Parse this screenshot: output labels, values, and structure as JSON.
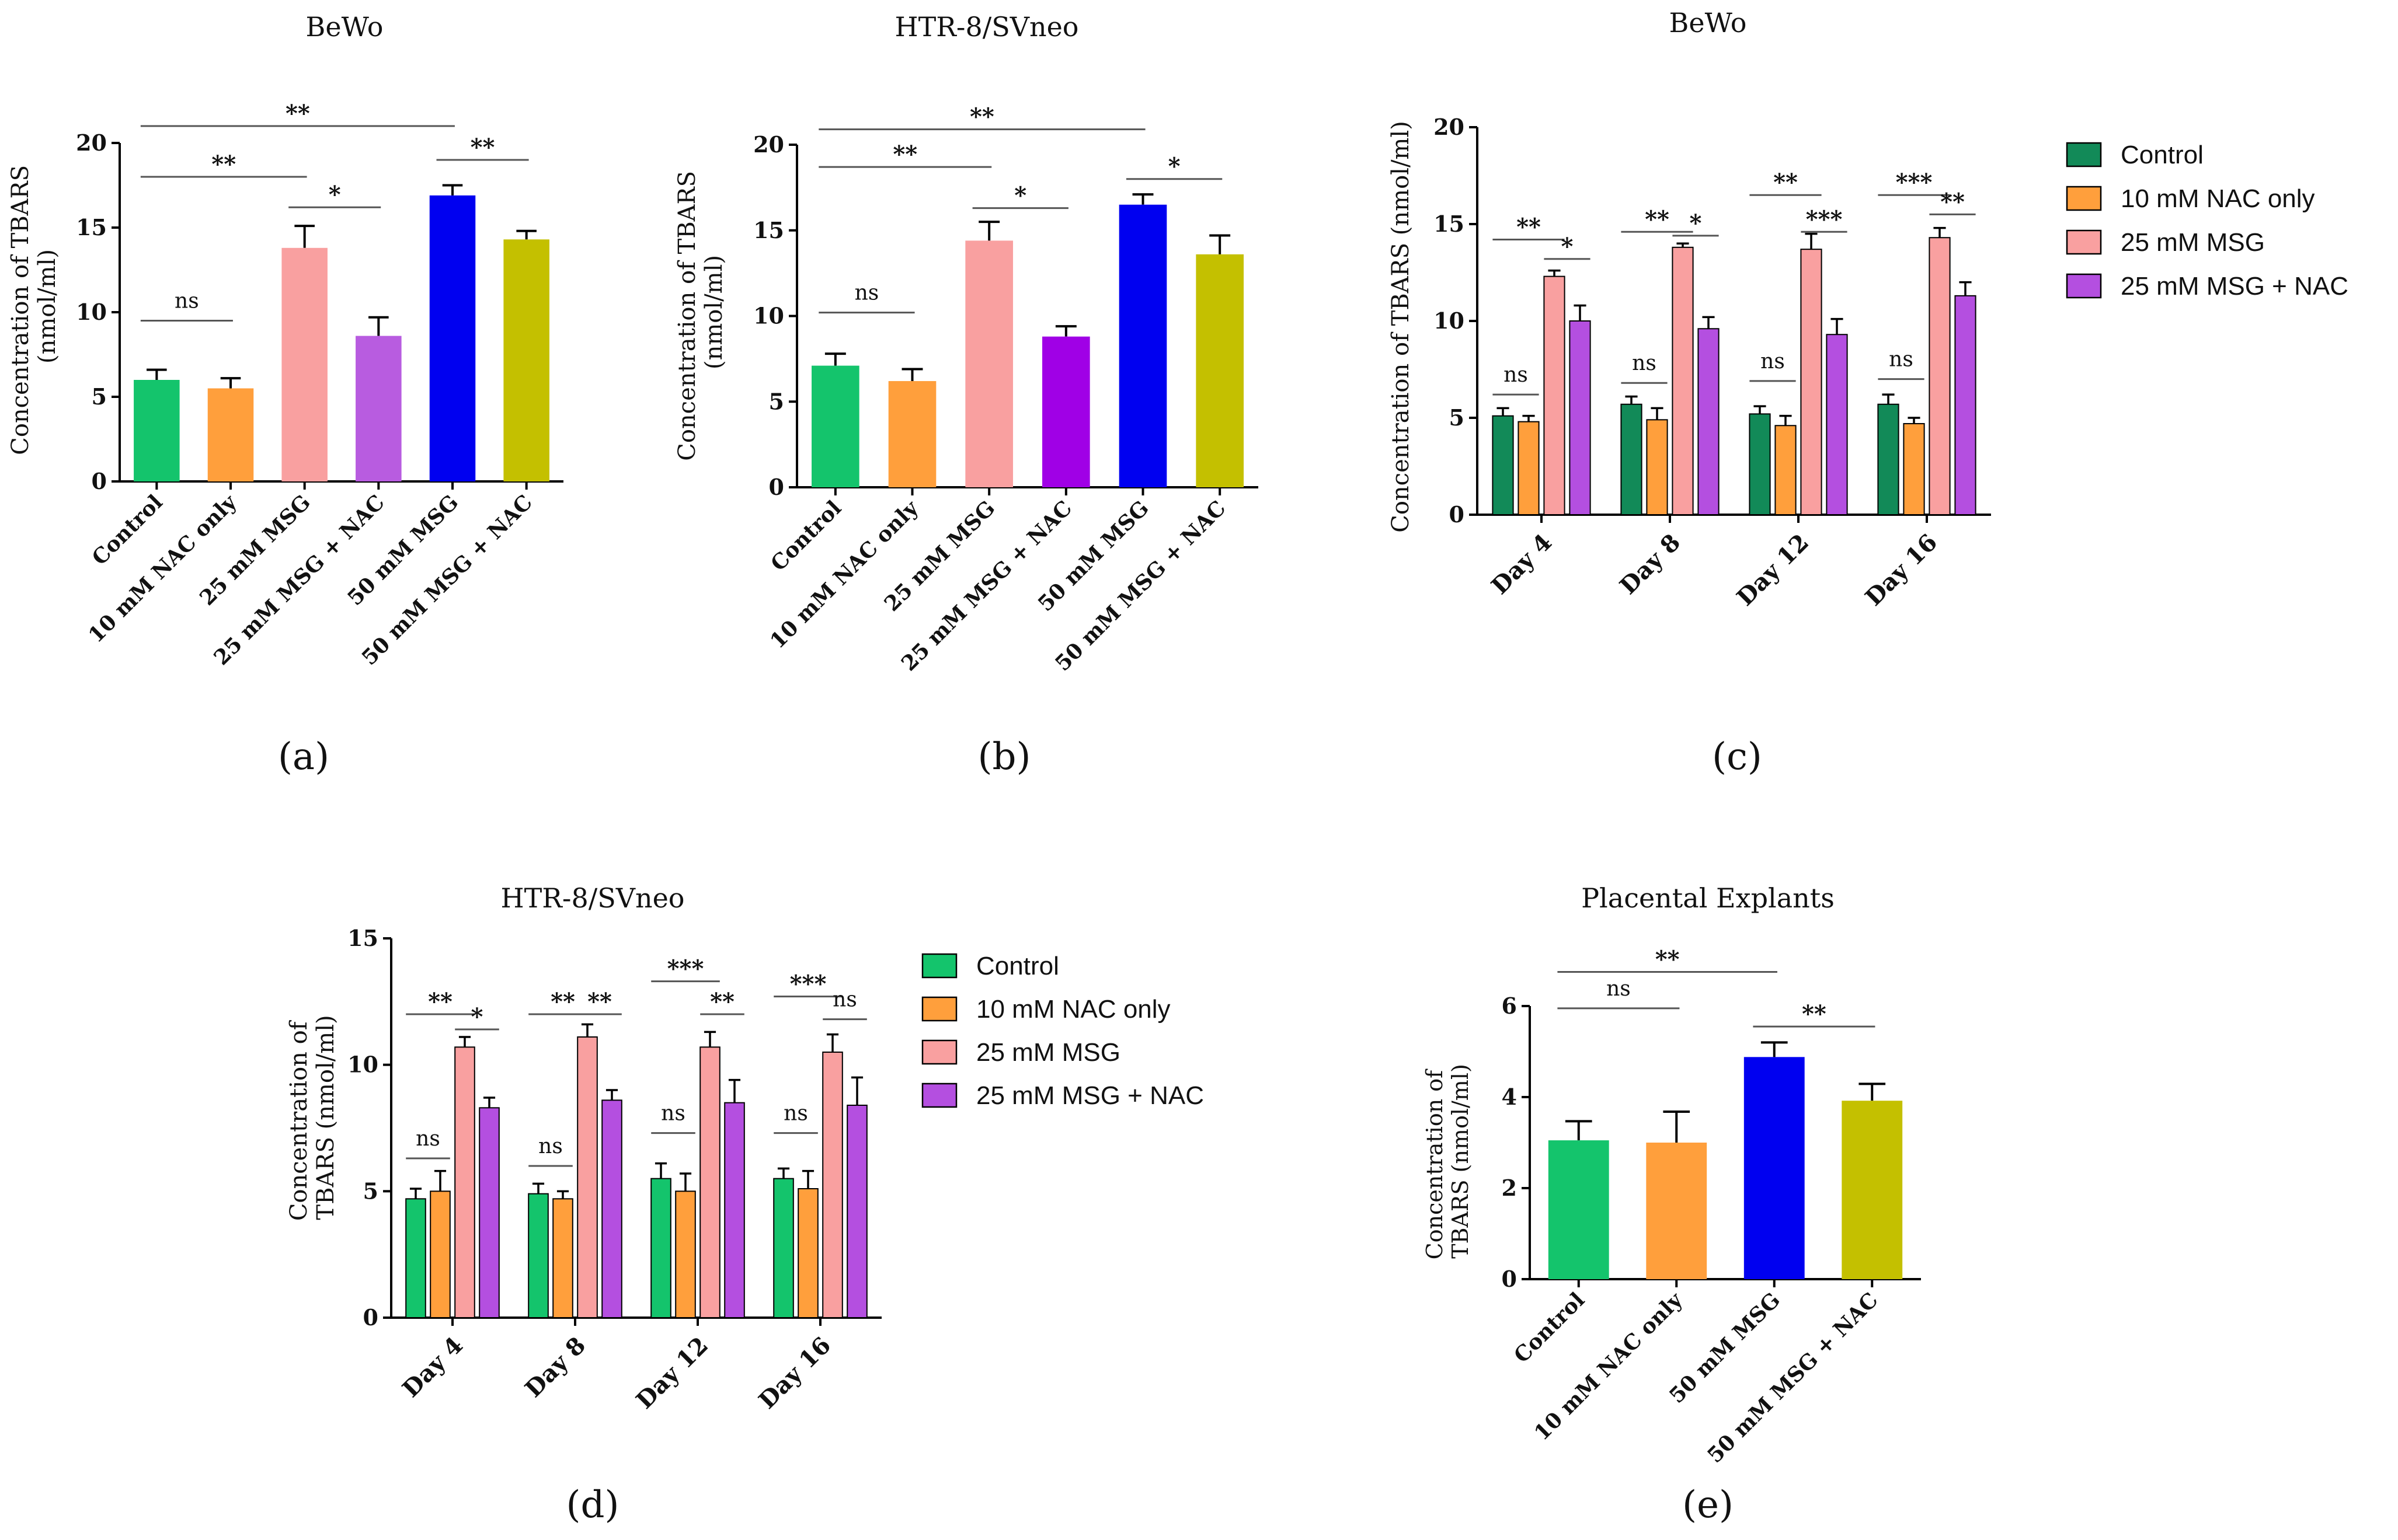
{
  "figure": {
    "panel_labels": [
      "(a)",
      "(b)",
      "(c)",
      "(d)",
      "(e)"
    ]
  },
  "colors": {
    "control_bright": "#14c46c",
    "nac_orange": "#ff9f3c",
    "msg25_pink": "#f9a0a0",
    "msgnac_purple_a": "#b85ce0",
    "msgnac_purple_b": "#a000e6",
    "msg50_blue": "#0000f0",
    "msg50nac_olive": "#c4c000",
    "control_dark": "#128a58",
    "group_purple": "#b44fe0",
    "axis": "#000000"
  },
  "chart_data": [
    {
      "id": "a",
      "type": "bar",
      "title": "BeWo",
      "ylabel": [
        "Concentration of TBARS",
        "(nmol/ml)"
      ],
      "ylim": [
        0,
        20
      ],
      "yticks": [
        0,
        5,
        10,
        15,
        20
      ],
      "categories": [
        "Control",
        "10 mM NAC only",
        "25 mM MSG",
        "25 mM MSG + NAC",
        "50 mM MSG",
        "50 mM MSG + NAC"
      ],
      "values": [
        6.0,
        5.5,
        13.8,
        8.6,
        16.9,
        14.3
      ],
      "errors": [
        0.6,
        0.6,
        1.3,
        1.1,
        0.6,
        0.5
      ],
      "color_keys": [
        "control_bright",
        "nac_orange",
        "msg25_pink",
        "msgnac_purple_a",
        "msg50_blue",
        "msg50nac_olive"
      ],
      "significance": [
        {
          "from": 0,
          "to": 1,
          "label": "ns",
          "level": 9.5
        },
        {
          "from": 0,
          "to": 2,
          "label": "**",
          "level": 18.0
        },
        {
          "from": 0,
          "to": 4,
          "label": "**",
          "level": 21.0
        },
        {
          "from": 2,
          "to": 3,
          "label": "*",
          "level": 16.2
        },
        {
          "from": 4,
          "to": 5,
          "label": "**",
          "level": 19.0
        }
      ]
    },
    {
      "id": "b",
      "type": "bar",
      "title": "HTR-8/SVneo",
      "ylabel": [
        "Concentration of TBARS",
        "(nmol/ml)"
      ],
      "ylim": [
        0,
        20
      ],
      "yticks": [
        0,
        5,
        10,
        15,
        20
      ],
      "categories": [
        "Control",
        "10 mM NAC only",
        "25 mM MSG",
        "25 mM MSG + NAC",
        "50 mM MSG",
        "50 mM MSG + NAC"
      ],
      "values": [
        7.1,
        6.2,
        14.4,
        8.8,
        16.5,
        13.6
      ],
      "errors": [
        0.7,
        0.7,
        1.1,
        0.6,
        0.6,
        1.1
      ],
      "color_keys": [
        "control_bright",
        "nac_orange",
        "msg25_pink",
        "msgnac_purple_b",
        "msg50_blue",
        "msg50nac_olive"
      ],
      "significance": [
        {
          "from": 0,
          "to": 1,
          "label": "ns",
          "level": 10.2
        },
        {
          "from": 0,
          "to": 2,
          "label": "**",
          "level": 18.7
        },
        {
          "from": 0,
          "to": 4,
          "label": "**",
          "level": 20.9
        },
        {
          "from": 2,
          "to": 3,
          "label": "*",
          "level": 16.3
        },
        {
          "from": 4,
          "to": 5,
          "label": "*",
          "level": 18.0
        }
      ]
    },
    {
      "id": "c",
      "type": "grouped_bar",
      "title": "BeWo",
      "ylabel": [
        "Concentration of TBARS (nmol/ml)"
      ],
      "ylim": [
        0,
        20
      ],
      "yticks": [
        0,
        5,
        10,
        15,
        20
      ],
      "categories": [
        "Day 4",
        "Day 8",
        "Day 12",
        "Day 16"
      ],
      "series": [
        {
          "name": "Control",
          "color_key": "control_dark",
          "values": [
            5.1,
            5.7,
            5.2,
            5.7
          ],
          "errors": [
            0.4,
            0.4,
            0.4,
            0.5
          ]
        },
        {
          "name": "10 mM NAC only",
          "color_key": "nac_orange",
          "values": [
            4.8,
            4.9,
            4.6,
            4.7
          ],
          "errors": [
            0.3,
            0.6,
            0.5,
            0.3
          ]
        },
        {
          "name": "25 mM MSG",
          "color_key": "msg25_pink",
          "values": [
            12.3,
            13.8,
            13.7,
            14.3
          ],
          "errors": [
            0.3,
            0.2,
            0.8,
            0.5
          ]
        },
        {
          "name": "25 mM MSG + NAC",
          "color_key": "group_purple",
          "values": [
            10.0,
            9.6,
            9.3,
            11.3
          ],
          "errors": [
            0.8,
            0.6,
            0.8,
            0.7
          ]
        }
      ],
      "significance": [
        {
          "group": 0,
          "from": 0,
          "to": 1,
          "label": "ns",
          "level": 6.2
        },
        {
          "group": 0,
          "from": 0,
          "to": 2,
          "label": "**",
          "level": 14.2
        },
        {
          "group": 0,
          "from": 2,
          "to": 3,
          "label": "*",
          "level": 13.2
        },
        {
          "group": 1,
          "from": 0,
          "to": 1,
          "label": "ns",
          "level": 6.8
        },
        {
          "group": 1,
          "from": 0,
          "to": 2,
          "label": "**",
          "level": 14.6
        },
        {
          "group": 1,
          "from": 2,
          "to": 3,
          "label": "*",
          "level": 14.4
        },
        {
          "group": 2,
          "from": 0,
          "to": 1,
          "label": "ns",
          "level": 6.9
        },
        {
          "group": 2,
          "from": 0,
          "to": 2,
          "label": "**",
          "level": 16.5
        },
        {
          "group": 2,
          "from": 2,
          "to": 3,
          "label": "***",
          "level": 14.6
        },
        {
          "group": 3,
          "from": 0,
          "to": 1,
          "label": "ns",
          "level": 7.0
        },
        {
          "group": 3,
          "from": 0,
          "to": 2,
          "label": "***",
          "level": 16.5
        },
        {
          "group": 3,
          "from": 2,
          "to": 3,
          "label": "**",
          "level": 15.5
        }
      ]
    },
    {
      "id": "d",
      "type": "grouped_bar",
      "title": "HTR-8/SVneo",
      "ylabel": [
        "Concentration of",
        "TBARS (nmol/ml)"
      ],
      "ylim": [
        0,
        15
      ],
      "yticks": [
        0,
        5,
        10,
        15
      ],
      "categories": [
        "Day 4",
        "Day 8",
        "Day 12",
        "Day 16"
      ],
      "series": [
        {
          "name": "Control",
          "color_key": "control_bright",
          "values": [
            4.7,
            4.9,
            5.5,
            5.5
          ],
          "errors": [
            0.4,
            0.4,
            0.6,
            0.4
          ]
        },
        {
          "name": "10 mM NAC only",
          "color_key": "nac_orange",
          "values": [
            5.0,
            4.7,
            5.0,
            5.1
          ],
          "errors": [
            0.8,
            0.3,
            0.7,
            0.7
          ]
        },
        {
          "name": "25 mM MSG",
          "color_key": "msg25_pink",
          "values": [
            10.7,
            11.1,
            10.7,
            10.5
          ],
          "errors": [
            0.4,
            0.5,
            0.6,
            0.7
          ]
        },
        {
          "name": "25 mM MSG + NAC",
          "color_key": "group_purple",
          "values": [
            8.3,
            8.6,
            8.5,
            8.4
          ],
          "errors": [
            0.4,
            0.4,
            0.9,
            1.1
          ]
        }
      ],
      "significance": [
        {
          "group": 0,
          "from": 0,
          "to": 1,
          "label": "ns",
          "level": 6.3
        },
        {
          "group": 0,
          "from": 0,
          "to": 2,
          "label": "**",
          "level": 12.0
        },
        {
          "group": 0,
          "from": 2,
          "to": 3,
          "label": "*",
          "level": 11.4
        },
        {
          "group": 1,
          "from": 0,
          "to": 1,
          "label": "ns",
          "level": 6.0
        },
        {
          "group": 1,
          "from": 0,
          "to": 2,
          "label": "**",
          "level": 12.0
        },
        {
          "group": 1,
          "from": 2,
          "to": 3,
          "label": "**",
          "level": 12.0
        },
        {
          "group": 2,
          "from": 0,
          "to": 1,
          "label": "ns",
          "level": 7.3
        },
        {
          "group": 2,
          "from": 0,
          "to": 2,
          "label": "***",
          "level": 13.3
        },
        {
          "group": 2,
          "from": 2,
          "to": 3,
          "label": "**",
          "level": 12.0
        },
        {
          "group": 3,
          "from": 0,
          "to": 1,
          "label": "ns",
          "level": 7.3
        },
        {
          "group": 3,
          "from": 0,
          "to": 2,
          "label": "***",
          "level": 12.7
        },
        {
          "group": 3,
          "from": 2,
          "to": 3,
          "label": "ns",
          "level": 11.8
        }
      ]
    },
    {
      "id": "e",
      "type": "bar",
      "title": "Placental Explants",
      "ylabel": [
        "Concentration of",
        "TBARS (nmol/ml)"
      ],
      "ylim": [
        0,
        6
      ],
      "yticks": [
        0,
        2,
        4,
        6
      ],
      "categories": [
        "Control",
        "10 mM NAC only",
        "50 mM MSG",
        "50 mM MSG + NAC"
      ],
      "values": [
        3.05,
        3.0,
        4.88,
        3.92
      ],
      "errors": [
        0.42,
        0.68,
        0.32,
        0.37
      ],
      "color_keys": [
        "control_bright",
        "nac_orange",
        "msg50_blue",
        "msg50nac_olive"
      ],
      "significance": [
        {
          "from": 0,
          "to": 1,
          "label": "ns",
          "level": 5.95
        },
        {
          "from": 0,
          "to": 2,
          "label": "**",
          "level": 6.75
        },
        {
          "from": 2,
          "to": 3,
          "label": "**",
          "level": 5.55
        }
      ]
    }
  ],
  "legends": {
    "c": [
      "Control",
      "10 mM NAC only",
      "25 mM MSG",
      "25 mM MSG + NAC"
    ],
    "d": [
      "Control",
      "10 mM NAC only",
      "25 mM MSG",
      "25 mM MSG + NAC"
    ]
  }
}
